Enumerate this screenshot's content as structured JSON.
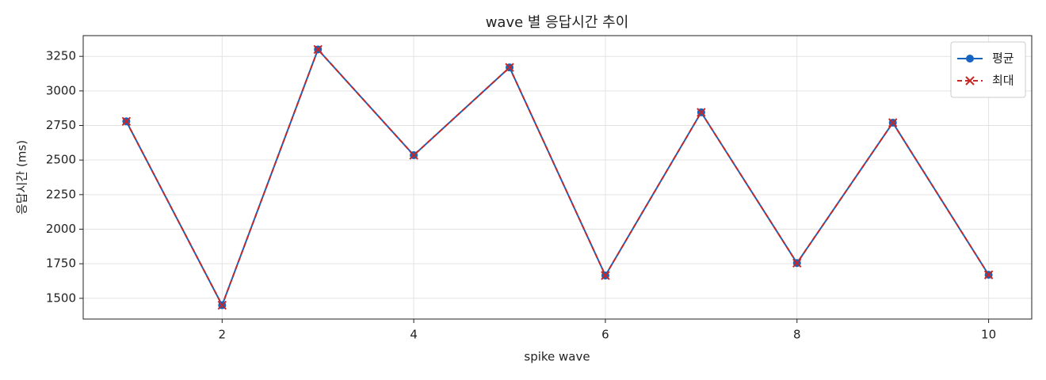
{
  "chart_data": {
    "type": "line",
    "title": "wave 별 응답시간 추이",
    "x_label": "spike wave",
    "y_label": "응답시간 (ms)",
    "x": [
      1,
      2,
      3,
      4,
      5,
      6,
      7,
      8,
      9,
      10
    ],
    "series": [
      {
        "name": "평균",
        "color": "#1565c0",
        "marker": "circle",
        "dash": false,
        "values": [
          2780,
          1450,
          3300,
          2535,
          3170,
          1665,
          2845,
          1755,
          2770,
          1670
        ]
      },
      {
        "name": "최대",
        "color": "#c62828",
        "marker": "x",
        "dash": true,
        "values": [
          2780,
          1450,
          3300,
          2535,
          3170,
          1665,
          2845,
          1755,
          2770,
          1670
        ]
      }
    ],
    "xlim": [
      0.55,
      10.45
    ],
    "ylim": [
      1350,
      3400
    ],
    "xticks": [
      2,
      4,
      6,
      8,
      10
    ],
    "yticks": [
      1500,
      1750,
      2000,
      2250,
      2500,
      2750,
      3000,
      3250
    ],
    "grid": true,
    "legend": "upper right"
  }
}
